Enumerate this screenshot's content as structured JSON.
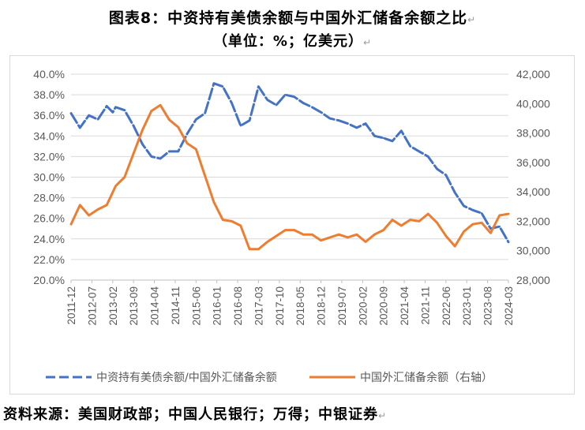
{
  "title": {
    "line1": "图表8：中资持有美债余额与中国外汇储备余额之比",
    "line2": "（单位：%；亿美元）"
  },
  "source": "资料来源：美国财政部；中国人民银行；万得；中银证券",
  "chart_data": {
    "type": "line",
    "y_left": {
      "min": 20,
      "max": 40,
      "step": 2,
      "ticks": [
        "20.0%",
        "22.0%",
        "24.0%",
        "26.0%",
        "28.0%",
        "30.0%",
        "32.0%",
        "34.0%",
        "36.0%",
        "38.0%",
        "40.0%"
      ]
    },
    "y_right": {
      "min": 28000,
      "max": 42000,
      "step": 2000,
      "ticks": [
        "28,000",
        "30,000",
        "32,000",
        "34,000",
        "36,000",
        "38,000",
        "40,000",
        "42,000"
      ]
    },
    "x_ticks": [
      "2011-12",
      "2012-07",
      "2013-02",
      "2013-09",
      "2014-04",
      "2014-11",
      "2015-06",
      "2016-01",
      "2016-08",
      "2017-03",
      "2017-10",
      "2018-05",
      "2018-12",
      "2019-07",
      "2020-02",
      "2020-09",
      "2021-04",
      "2021-11",
      "2022-06",
      "2023-01",
      "2023-08",
      "2024-03"
    ],
    "x_range": [
      "2011-12",
      "2024-03"
    ],
    "series": [
      {
        "name": "中资持有美债余额/中国外汇储备余额",
        "axis": "left",
        "color": "#4472C4",
        "style": "dashed",
        "x": [
          "2011-12",
          "2012-03",
          "2012-06",
          "2012-09",
          "2012-12",
          "2013-02",
          "2013-03",
          "2013-06",
          "2013-09",
          "2013-12",
          "2014-03",
          "2014-06",
          "2014-09",
          "2014-12",
          "2015-03",
          "2015-06",
          "2015-09",
          "2015-12",
          "2016-03",
          "2016-06",
          "2016-09",
          "2016-12",
          "2017-03",
          "2017-06",
          "2017-09",
          "2017-12",
          "2018-03",
          "2018-06",
          "2018-09",
          "2018-12",
          "2019-03",
          "2019-06",
          "2019-09",
          "2019-12",
          "2020-03",
          "2020-06",
          "2020-09",
          "2020-12",
          "2021-03",
          "2021-06",
          "2021-09",
          "2021-12",
          "2022-03",
          "2022-06",
          "2022-09",
          "2022-12",
          "2023-03",
          "2023-06",
          "2023-09",
          "2023-12",
          "2024-03"
        ],
        "values": [
          36.2,
          34.8,
          36.0,
          35.6,
          36.9,
          36.3,
          36.8,
          36.5,
          35.0,
          33.2,
          32.0,
          31.8,
          32.5,
          32.5,
          34.2,
          35.6,
          36.2,
          39.1,
          38.8,
          37.2,
          35.0,
          35.5,
          38.8,
          37.5,
          37.0,
          38.0,
          37.8,
          37.2,
          36.8,
          36.3,
          35.7,
          35.5,
          35.2,
          34.8,
          35.2,
          34.0,
          33.8,
          33.5,
          34.5,
          33.0,
          32.5,
          32.0,
          30.8,
          30.2,
          28.5,
          27.2,
          26.8,
          26.5,
          25.0,
          25.2,
          23.7
        ]
      },
      {
        "name": "中国外汇储备余额（右轴）",
        "axis": "right",
        "color": "#ED7D31",
        "style": "solid",
        "x": [
          "2011-12",
          "2012-03",
          "2012-06",
          "2012-09",
          "2012-12",
          "2013-03",
          "2013-06",
          "2013-09",
          "2013-12",
          "2014-03",
          "2014-06",
          "2014-09",
          "2014-12",
          "2015-03",
          "2015-06",
          "2015-09",
          "2015-12",
          "2016-03",
          "2016-06",
          "2016-09",
          "2016-12",
          "2017-03",
          "2017-06",
          "2017-09",
          "2017-12",
          "2018-03",
          "2018-06",
          "2018-09",
          "2018-12",
          "2019-03",
          "2019-06",
          "2019-09",
          "2019-12",
          "2020-03",
          "2020-06",
          "2020-09",
          "2020-12",
          "2021-03",
          "2021-06",
          "2021-09",
          "2021-12",
          "2022-03",
          "2022-06",
          "2022-09",
          "2022-12",
          "2023-03",
          "2023-06",
          "2023-09",
          "2023-12",
          "2024-03"
        ],
        "values": [
          31800,
          33100,
          32400,
          32800,
          33100,
          34400,
          35000,
          36600,
          38200,
          39500,
          39900,
          38900,
          38400,
          37300,
          36900,
          35100,
          33300,
          32100,
          32000,
          31700,
          30100,
          30100,
          30600,
          31000,
          31400,
          31400,
          31100,
          31100,
          30700,
          30900,
          31100,
          30900,
          31100,
          30600,
          31100,
          31400,
          32100,
          31700,
          32100,
          32000,
          32500,
          31900,
          31000,
          30300,
          31300,
          31800,
          31900,
          31200,
          32400,
          32500
        ]
      }
    ],
    "legend": {
      "placement": "bottom"
    }
  }
}
